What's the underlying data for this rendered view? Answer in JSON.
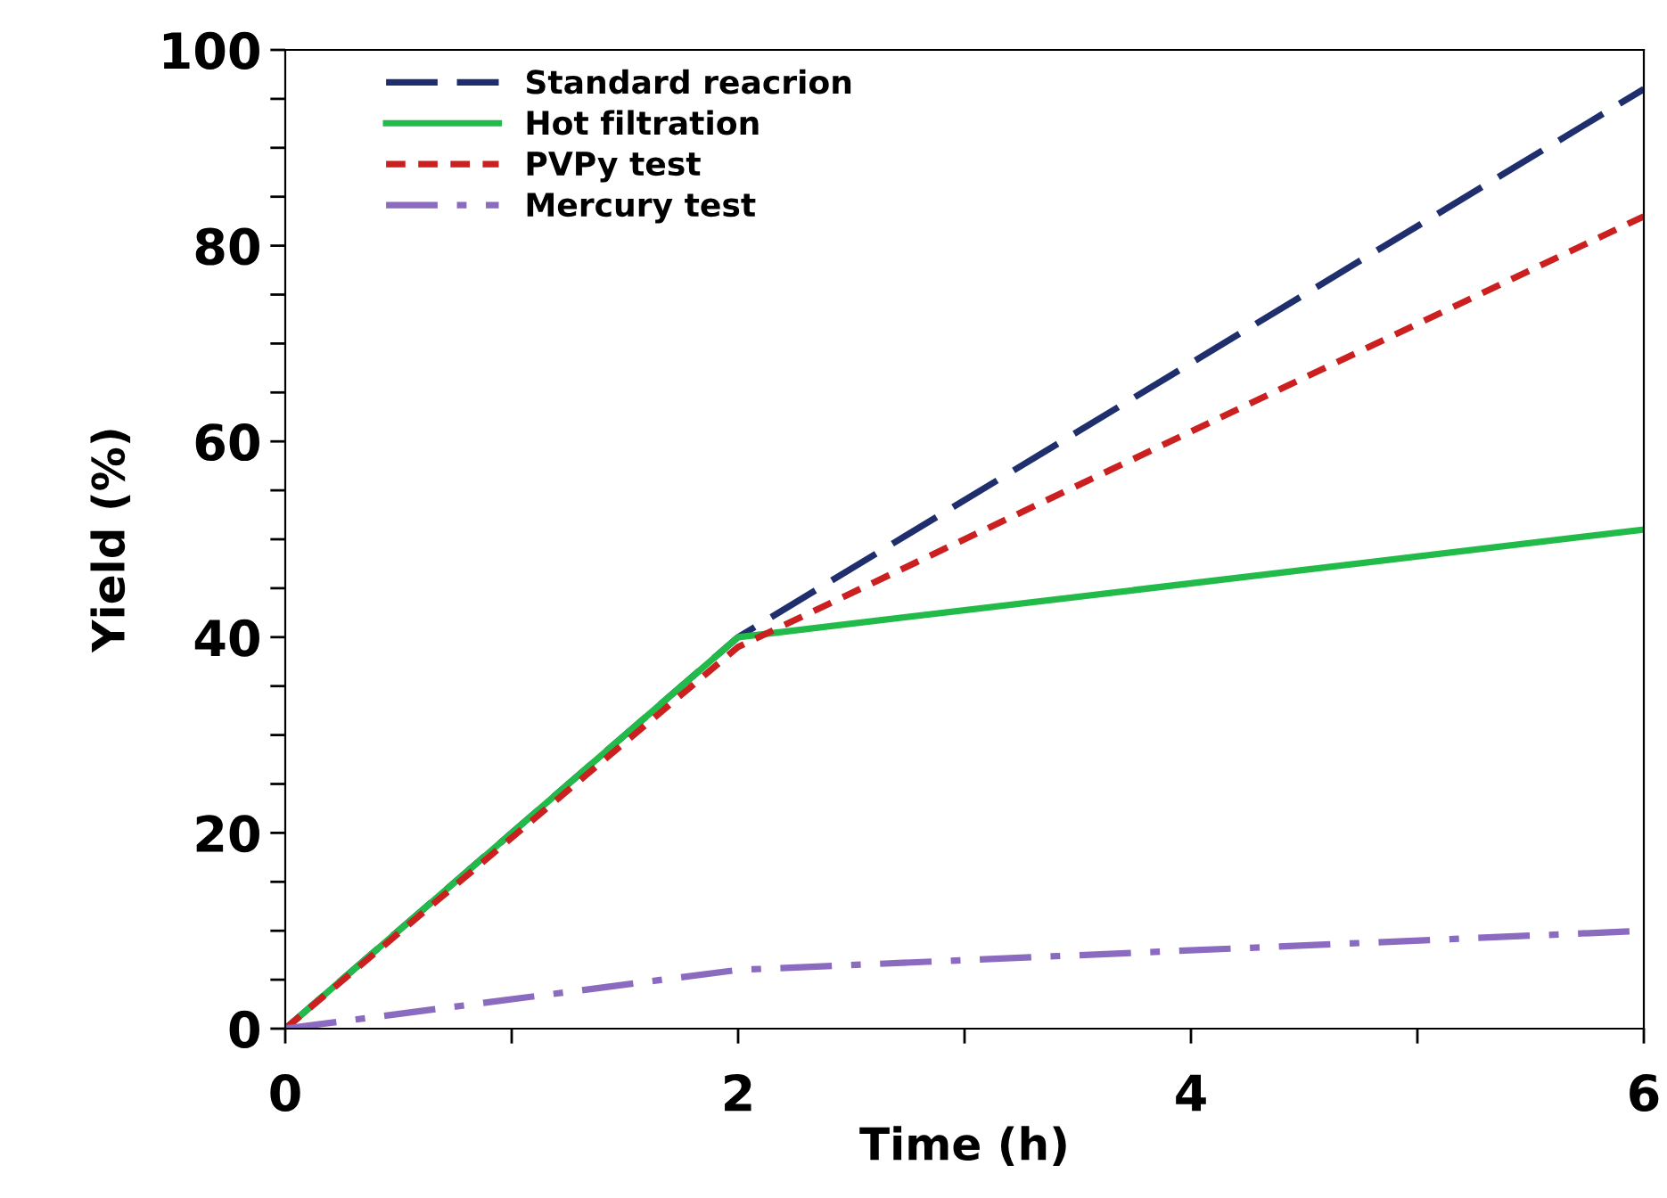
{
  "chart_data": {
    "type": "line",
    "xlabel": "Time (h)",
    "ylabel": "Yield (%)",
    "x": [
      0,
      2,
      6
    ],
    "series": [
      {
        "name": "Standard reacrion",
        "color": "#1f2f6e",
        "values": [
          0,
          40,
          96
        ],
        "line_style": "dashed"
      },
      {
        "name": "Hot filtration",
        "color": "#22bb4a",
        "values": [
          0,
          40,
          51
        ],
        "line_style": "solid"
      },
      {
        "name": "PVPy test",
        "color": "#cc1f1f",
        "values": [
          0,
          39,
          83
        ],
        "line_style": "dotted"
      },
      {
        "name": "Mercury test",
        "color": "#8a6bbf",
        "values": [
          0,
          6,
          10
        ],
        "line_style": "dashdot"
      }
    ],
    "xlim": [
      0,
      6
    ],
    "ylim": [
      0,
      100
    ],
    "xticks": [
      0,
      {
        "value": 1,
        "label": null
      },
      2,
      {
        "value": 3,
        "label": null
      },
      4,
      {
        "value": 5,
        "label": null
      },
      6
    ],
    "yticks": [
      0,
      {
        "value": 5,
        "label": null
      },
      {
        "value": 10,
        "label": null
      },
      {
        "value": 15,
        "label": null
      },
      20,
      {
        "value": 25,
        "label": null
      },
      {
        "value": 30,
        "label": null
      },
      {
        "value": 35,
        "label": null
      },
      40,
      {
        "value": 45,
        "label": null
      },
      {
        "value": 50,
        "label": null
      },
      {
        "value": 55,
        "label": null
      },
      60,
      {
        "value": 65,
        "label": null
      },
      {
        "value": 70,
        "label": null
      },
      {
        "value": 75,
        "label": null
      },
      80,
      {
        "value": 85,
        "label": null
      },
      {
        "value": 90,
        "label": null
      },
      {
        "value": 95,
        "label": null
      },
      100
    ],
    "grid": false,
    "legend": "top left",
    "marker": "none"
  }
}
